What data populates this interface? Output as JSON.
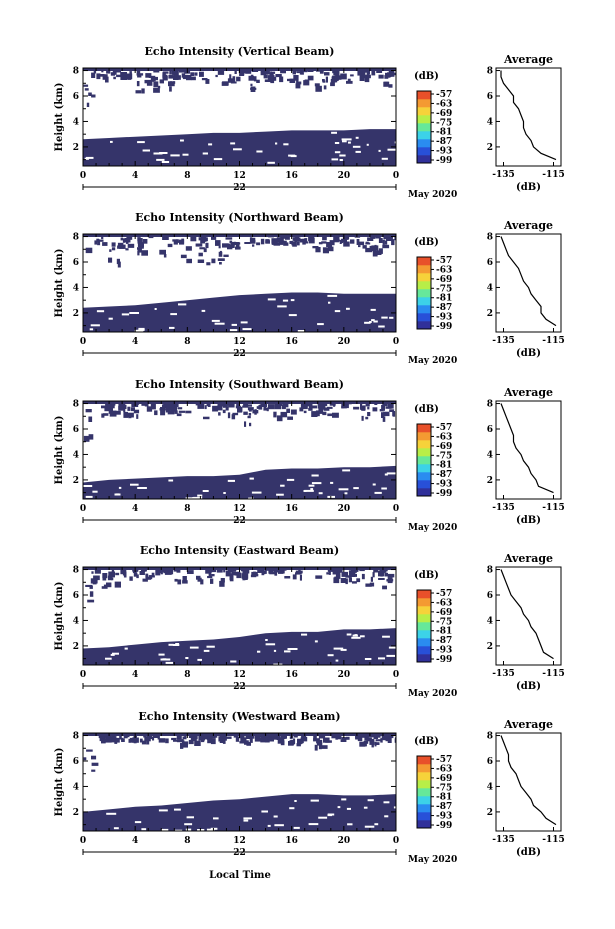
{
  "chart_data": {
    "type": "heatmap",
    "colorbar": {
      "unit": "(dB)",
      "ticks": [
        "-57",
        "-63",
        "-69",
        "-75",
        "-81",
        "-87",
        "-93",
        "-99"
      ],
      "colors": [
        "#30309a",
        "#2850d8",
        "#2a8cf0",
        "#3cd2e8",
        "#66e89a",
        "#b8ee48",
        "#f6d23a",
        "#f49a32",
        "#e8502a"
      ]
    },
    "x_ticks": [
      "0",
      "4",
      "8",
      "12",
      "16",
      "20",
      "0"
    ],
    "day_label": "22",
    "date_label": "May 2020",
    "xlabel": "Local Time",
    "ylabel": "Height (km)",
    "y_ticks": [
      "2",
      "4",
      "6",
      "8"
    ],
    "ylim": [
      0.5,
      8.2
    ],
    "xlim": [
      0,
      24
    ],
    "fill_color": "#35346a",
    "profile": {
      "title": "Average",
      "xlabel": "(dB)",
      "x_ticks": [
        "-135",
        "-115"
      ],
      "xlim": [
        -138,
        -112
      ],
      "y_ticks": [
        "2",
        "4",
        "6",
        "8"
      ]
    },
    "panels": [
      {
        "title": "Echo Intensity (Vertical Beam)",
        "boundary_height": [
          2.6,
          2.7,
          2.8,
          2.9,
          3.0,
          3.1,
          3.1,
          3.2,
          3.3,
          3.3,
          3.3,
          3.4,
          3.4
        ],
        "upper_extent": [
          5.0,
          7.3,
          6.4,
          6.5,
          7.5,
          7.0,
          6.6,
          7.2,
          6.8,
          6.7,
          6.9,
          7.4,
          6.8
        ],
        "profile_db": [
          [
            8.0,
            -136
          ],
          [
            7.5,
            -136
          ],
          [
            7.0,
            -135
          ],
          [
            6.5,
            -133
          ],
          [
            6.0,
            -131
          ],
          [
            5.5,
            -131
          ],
          [
            5.0,
            -129
          ],
          [
            4.5,
            -128
          ],
          [
            4.0,
            -127
          ],
          [
            3.5,
            -127
          ],
          [
            3.0,
            -126
          ],
          [
            2.5,
            -124
          ],
          [
            2.0,
            -123
          ],
          [
            1.5,
            -120
          ],
          [
            1.0,
            -114
          ]
        ]
      },
      {
        "title": "Echo Intensity (Northward Beam)",
        "boundary_height": [
          2.4,
          2.5,
          2.6,
          2.8,
          3.0,
          3.2,
          3.4,
          3.5,
          3.6,
          3.6,
          3.5,
          3.5,
          3.5
        ],
        "upper_extent": [
          5.0,
          5.8,
          6.8,
          5.5,
          5.6,
          5.4,
          7.2,
          7.4,
          7.5,
          7.1,
          7.3,
          6.6,
          7.4
        ],
        "profile_db": [
          [
            8.0,
            -136
          ],
          [
            7.5,
            -135
          ],
          [
            7.0,
            -134
          ],
          [
            6.5,
            -133
          ],
          [
            6.0,
            -131
          ],
          [
            5.5,
            -129
          ],
          [
            5.0,
            -128
          ],
          [
            4.5,
            -127
          ],
          [
            4.0,
            -125
          ],
          [
            3.5,
            -124
          ],
          [
            3.0,
            -122
          ],
          [
            2.5,
            -120
          ],
          [
            2.0,
            -120
          ],
          [
            1.5,
            -118
          ],
          [
            1.0,
            -114
          ]
        ]
      },
      {
        "title": "Echo Intensity (Southward Beam)",
        "boundary_height": [
          1.8,
          2.0,
          2.1,
          2.2,
          2.3,
          2.3,
          2.4,
          2.8,
          2.9,
          2.9,
          3.0,
          3.0,
          3.1
        ],
        "upper_extent": [
          5.0,
          7.2,
          6.5,
          7.3,
          7.0,
          6.8,
          6.4,
          7.0,
          6.8,
          7.1,
          7.2,
          6.6,
          7.2
        ],
        "profile_db": [
          [
            8.0,
            -136
          ],
          [
            7.5,
            -135
          ],
          [
            7.0,
            -134
          ],
          [
            6.5,
            -133
          ],
          [
            6.0,
            -132
          ],
          [
            5.5,
            -131
          ],
          [
            5.0,
            -131
          ],
          [
            4.5,
            -130
          ],
          [
            4.0,
            -128
          ],
          [
            3.5,
            -127
          ],
          [
            3.0,
            -125
          ],
          [
            2.5,
            -124
          ],
          [
            2.0,
            -122
          ],
          [
            1.5,
            -121
          ],
          [
            1.0,
            -115
          ]
        ]
      },
      {
        "title": "Echo Intensity (Eastward Beam)",
        "boundary_height": [
          1.8,
          1.9,
          2.1,
          2.3,
          2.4,
          2.5,
          2.7,
          3.0,
          3.1,
          3.1,
          3.3,
          3.3,
          3.4
        ],
        "upper_extent": [
          5.0,
          6.6,
          7.0,
          7.3,
          6.8,
          6.8,
          7.4,
          7.8,
          7.4,
          6.8,
          6.7,
          6.7,
          6.9
        ],
        "profile_db": [
          [
            8.0,
            -136
          ],
          [
            7.5,
            -135
          ],
          [
            7.0,
            -134
          ],
          [
            6.5,
            -133
          ],
          [
            6.0,
            -132
          ],
          [
            5.5,
            -130
          ],
          [
            5.0,
            -128
          ],
          [
            4.5,
            -127
          ],
          [
            4.0,
            -125
          ],
          [
            3.5,
            -124
          ],
          [
            3.0,
            -122
          ],
          [
            2.5,
            -121
          ],
          [
            2.0,
            -120
          ],
          [
            1.5,
            -119
          ],
          [
            1.0,
            -115
          ]
        ]
      },
      {
        "title": "Echo Intensity (Westward Beam)",
        "boundary_height": [
          2.0,
          2.2,
          2.4,
          2.5,
          2.7,
          2.9,
          3.0,
          3.2,
          3.4,
          3.4,
          3.3,
          3.3,
          3.4
        ],
        "upper_extent": [
          5.0,
          7.6,
          7.5,
          7.5,
          7.4,
          7.6,
          7.4,
          7.8,
          7.3,
          6.8,
          7.6,
          7.4,
          7.7
        ],
        "profile_db": [
          [
            8.0,
            -136
          ],
          [
            7.5,
            -135
          ],
          [
            7.0,
            -134
          ],
          [
            6.5,
            -133
          ],
          [
            6.0,
            -133
          ],
          [
            5.5,
            -132
          ],
          [
            5.0,
            -130
          ],
          [
            4.5,
            -129
          ],
          [
            4.0,
            -128
          ],
          [
            3.5,
            -126
          ],
          [
            3.0,
            -124
          ],
          [
            2.5,
            -123
          ],
          [
            2.0,
            -120
          ],
          [
            1.5,
            -118
          ],
          [
            1.0,
            -114
          ]
        ]
      }
    ]
  }
}
